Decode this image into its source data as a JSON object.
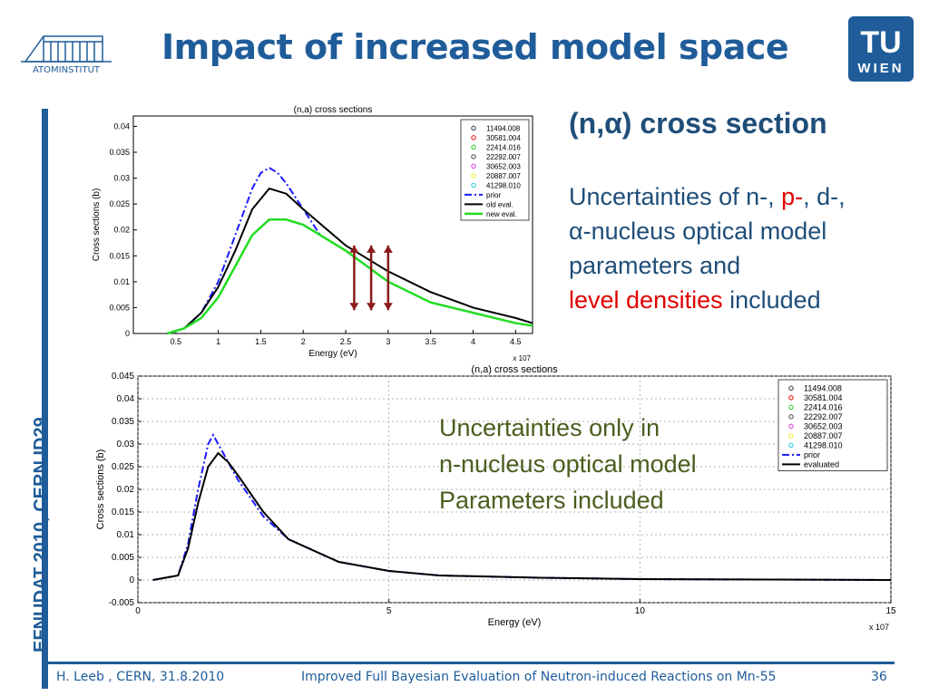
{
  "slide": {
    "title": "Impact of increased model space",
    "logo_left_text": "ATOMINSTITUT",
    "logo_right_text": [
      "TU",
      "WIEN"
    ],
    "vertical_label": "EFNUDAT 2010, CERN     ID29",
    "footer_left": "H. Leeb , CERN, 31.8.2010",
    "footer_center": "Improved Full Bayesian Evaluation of Neutron-induced Reactions on Mn-55",
    "footer_right": "36"
  },
  "right_text": {
    "heading": "(n,α) cross section",
    "line1_a": "Uncertainties of n-, ",
    "line1_b": "p-",
    "line1_c": ", d-,",
    "line2": "α-nucleus optical model",
    "line3": "parameters and",
    "line4_a": "level densities",
    "line4_b": " included"
  },
  "middle_text": {
    "line1": "Uncertainties only in",
    "line2": "n-nucleus optical model",
    "line3": "Parameters included"
  },
  "colors": {
    "accent": "#1f5c99",
    "text_green": "#4a5e1e",
    "red": "#e00000"
  },
  "chart_data": [
    {
      "type": "line",
      "title": "(n,a) cross sections",
      "xlabel": "Energy (eV)",
      "ylabel": "Cross sections (b)",
      "x_multiplier": "x 10^7",
      "xlim": [
        0,
        4.7
      ],
      "ylim": [
        0,
        0.042
      ],
      "xticks": [
        "0.5",
        "1",
        "1.5",
        "2",
        "2.5",
        "3",
        "3.5",
        "4",
        "4.5"
      ],
      "yticks": [
        "0",
        "0.005",
        "0.01",
        "0.015",
        "0.02",
        "0.025",
        "0.03",
        "0.035",
        "0.04"
      ],
      "legend": [
        "11494.008",
        "30581.004",
        "22414.016",
        "22292.007",
        "30652.003",
        "20887.007",
        "41298.010",
        "prior",
        "old eval.",
        "new eval."
      ],
      "series": [
        {
          "name": "prior",
          "x": [
            0.4,
            0.6,
            0.8,
            1.0,
            1.2,
            1.4,
            1.5,
            1.6,
            1.7,
            1.8,
            2.0,
            2.2
          ],
          "y": [
            0,
            0.001,
            0.004,
            0.01,
            0.019,
            0.028,
            0.031,
            0.032,
            0.031,
            0.029,
            0.024,
            0.019
          ]
        },
        {
          "name": "old eval.",
          "x": [
            0.4,
            0.6,
            0.8,
            1.0,
            1.2,
            1.4,
            1.6,
            1.8,
            2.0,
            2.5,
            3.0,
            3.5,
            4.0,
            4.5,
            4.7
          ],
          "y": [
            0,
            0.001,
            0.004,
            0.009,
            0.016,
            0.024,
            0.028,
            0.027,
            0.024,
            0.017,
            0.012,
            0.008,
            0.005,
            0.003,
            0.002
          ]
        },
        {
          "name": "new eval.",
          "x": [
            0.4,
            0.6,
            0.8,
            1.0,
            1.2,
            1.4,
            1.6,
            1.8,
            2.0,
            2.5,
            3.0,
            3.5,
            4.0,
            4.5,
            4.7
          ],
          "y": [
            0,
            0.001,
            0.003,
            0.007,
            0.013,
            0.019,
            0.022,
            0.022,
            0.021,
            0.016,
            0.01,
            0.006,
            0.004,
            0.002,
            0.0015
          ]
        }
      ]
    },
    {
      "type": "line",
      "title": "(n,a) cross sections",
      "xlabel": "Energy (eV)",
      "ylabel": "Cross sections (b)",
      "x_multiplier": "x 10^7",
      "xlim": [
        0,
        15
      ],
      "ylim": [
        -0.005,
        0.045
      ],
      "xticks": [
        "0",
        "5",
        "10",
        "15"
      ],
      "yticks": [
        "-0.005",
        "0",
        "0.005",
        "0.01",
        "0.015",
        "0.02",
        "0.025",
        "0.03",
        "0.035",
        "0.04",
        "0.045"
      ],
      "legend": [
        "11494.008",
        "30581.004",
        "22414.016",
        "22292.007",
        "30652.003",
        "20887.007",
        "41298.010",
        "prior",
        "evaluated"
      ],
      "series": [
        {
          "name": "prior",
          "x": [
            0.3,
            0.8,
            1.0,
            1.2,
            1.4,
            1.5,
            1.7,
            2.0,
            2.5,
            3,
            4,
            5,
            6,
            8,
            10,
            15
          ],
          "y": [
            0,
            0.001,
            0.008,
            0.02,
            0.03,
            0.032,
            0.028,
            0.022,
            0.014,
            0.009,
            0.004,
            0.002,
            0.001,
            0.0005,
            0.0002,
            0
          ]
        },
        {
          "name": "evaluated",
          "x": [
            0.3,
            0.8,
            1.0,
            1.2,
            1.4,
            1.6,
            1.8,
            2.0,
            2.5,
            3,
            4,
            5,
            6,
            8,
            10,
            15
          ],
          "y": [
            0,
            0.001,
            0.007,
            0.017,
            0.025,
            0.028,
            0.026,
            0.023,
            0.015,
            0.009,
            0.004,
            0.002,
            0.001,
            0.0005,
            0.0002,
            0
          ]
        }
      ]
    }
  ]
}
